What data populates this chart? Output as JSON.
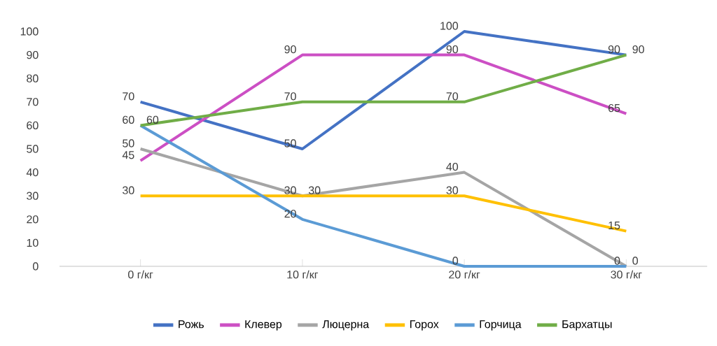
{
  "chart_data": {
    "type": "line",
    "categories": [
      "0 г/кг",
      "10 г/кг",
      "20 г/кг",
      "30 г/кг"
    ],
    "series": [
      {
        "name": "Рожь",
        "color": "#4472c4",
        "values": [
          70,
          50,
          100,
          90
        ]
      },
      {
        "name": "Клевер",
        "color": "#cc4fc4",
        "values": [
          45,
          90,
          90,
          65
        ]
      },
      {
        "name": "Люцерна",
        "color": "#a5a5a5",
        "values": [
          50,
          30,
          40,
          0
        ]
      },
      {
        "name": "Горох",
        "color": "#ffc000",
        "values": [
          30,
          30,
          30,
          15
        ]
      },
      {
        "name": "Горчица",
        "color": "#5b9bd5",
        "values": [
          60,
          20,
          0,
          0
        ]
      },
      {
        "name": "Бархатцы",
        "color": "#70ad47",
        "values": [
          60,
          70,
          70,
          90
        ]
      }
    ],
    "ylim": [
      0,
      100
    ],
    "yticks": [
      0,
      10,
      20,
      30,
      40,
      50,
      60,
      70,
      80,
      90,
      100
    ],
    "grid": false,
    "legend": "bottom",
    "marker": "none",
    "line_style": "solid",
    "data_labels": true
  }
}
